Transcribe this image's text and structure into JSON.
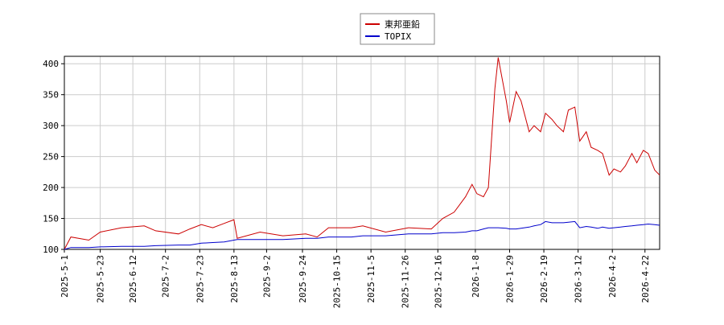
{
  "chart_data": {
    "type": "line",
    "x": [
      "2025-5-1",
      "2025-5-5",
      "2025-5-16",
      "2025-5-23",
      "2025-6-5",
      "2025-6-19",
      "2025-6-26",
      "2025-7-10",
      "2025-7-17",
      "2025-7-24",
      "2025-7-31",
      "2025-8-7",
      "2025-8-13",
      "2025-8-15",
      "2025-8-29",
      "2025-9-12",
      "2025-9-26",
      "2025-10-3",
      "2025-10-10",
      "2025-10-24",
      "2025-10-31",
      "2025-11-14",
      "2025-11-28",
      "2025-12-12",
      "2025-12-19",
      "2025-12-26",
      "2026-1-2",
      "2026-1-6",
      "2026-1-9",
      "2026-1-13",
      "2026-1-16",
      "2026-1-20",
      "2026-1-22",
      "2026-1-27",
      "2026-1-29",
      "2026-2-2",
      "2026-2-5",
      "2026-2-10",
      "2026-2-13",
      "2026-2-17",
      "2026-2-20",
      "2026-2-24",
      "2026-2-27",
      "2026-3-3",
      "2026-3-6",
      "2026-3-10",
      "2026-3-13",
      "2026-3-17",
      "2026-3-20",
      "2026-3-24",
      "2026-3-27",
      "2026-3-31",
      "2026-4-3",
      "2026-4-7",
      "2026-4-10",
      "2026-4-14",
      "2026-4-17",
      "2026-4-21",
      "2026-4-24",
      "2026-4-28",
      "2026-5-1"
    ],
    "series": [
      {
        "name": "東邦亜鉛",
        "color": "#cc0000",
        "values": [
          100,
          120,
          115,
          128,
          135,
          138,
          130,
          125,
          133,
          140,
          135,
          142,
          148,
          118,
          128,
          122,
          125,
          120,
          135,
          135,
          138,
          128,
          135,
          133,
          150,
          160,
          185,
          205,
          190,
          185,
          200,
          360,
          410,
          340,
          305,
          355,
          340,
          290,
          300,
          290,
          320,
          310,
          300,
          290,
          325,
          330,
          275,
          290,
          265,
          260,
          255,
          220,
          230,
          225,
          235,
          255,
          240,
          260,
          255,
          228,
          220
        ]
      },
      {
        "name": "TOPIX",
        "color": "#0000cc",
        "values": [
          100,
          103,
          103,
          104,
          105,
          105,
          106,
          107,
          107,
          110,
          111,
          112,
          115,
          116,
          116,
          116,
          118,
          118,
          120,
          120,
          122,
          122,
          125,
          125,
          127,
          127,
          128,
          130,
          130,
          133,
          135,
          135,
          135,
          134,
          133,
          133,
          134,
          136,
          138,
          140,
          145,
          143,
          143,
          143,
          144,
          145,
          135,
          137,
          136,
          134,
          136,
          134,
          135,
          136,
          137,
          138,
          139,
          140,
          141,
          140,
          139
        ]
      }
    ],
    "xlim": [
      "2025-5-1",
      "2026-5-1"
    ],
    "xticks": [
      "2025-5-1",
      "2025-5-23",
      "2025-6-12",
      "2025-7-2",
      "2025-7-23",
      "2025-8-13",
      "2025-9-2",
      "2025-9-24",
      "2025-10-15",
      "2025-11-5",
      "2025-11-26",
      "2025-12-16",
      "2026-1-8",
      "2026-1-29",
      "2026-2-19",
      "2026-3-12",
      "2026-4-2",
      "2026-4-22"
    ],
    "ylim": [
      100,
      412
    ],
    "yticks": [
      100,
      150,
      200,
      250,
      300,
      350,
      400
    ],
    "grid": true
  }
}
